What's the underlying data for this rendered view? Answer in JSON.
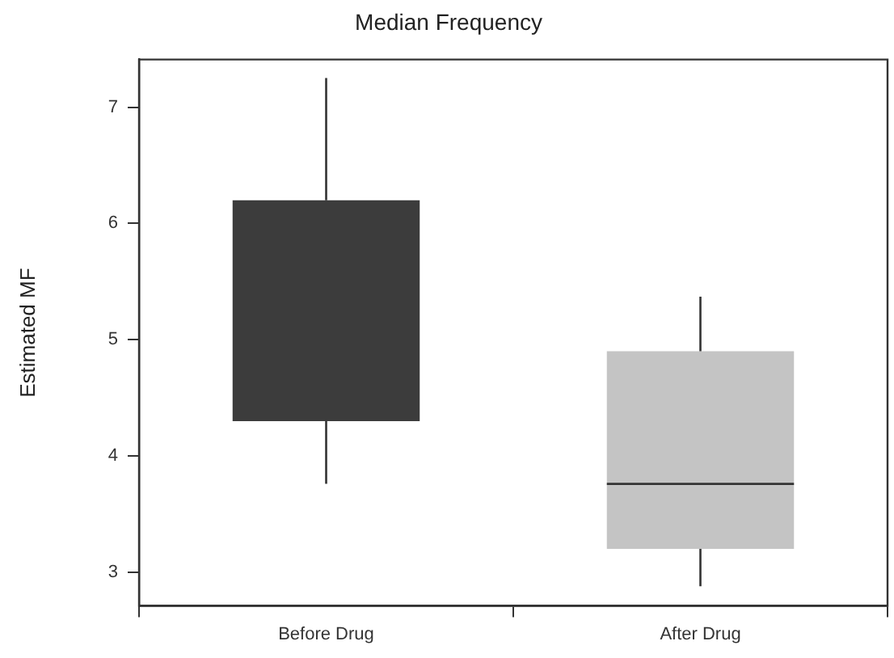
{
  "chart_data": {
    "type": "box",
    "title": "Median Frequency",
    "ylabel": "Estimated MF",
    "categories": [
      "Before Drug",
      "After Drug"
    ],
    "colors": [
      "#3c3c3c",
      "#c4c4c4"
    ],
    "boxes": [
      {
        "low": 3.76,
        "q1": 4.3,
        "median": null,
        "q3": 6.2,
        "high": 7.25
      },
      {
        "low": 2.88,
        "q1": 3.2,
        "median": 3.76,
        "q3": 4.9,
        "high": 5.37
      }
    ],
    "ylim": [
      2.71,
      7.41
    ],
    "yticks": [
      3,
      4,
      5,
      6,
      7
    ],
    "grid": false,
    "legend": false
  }
}
